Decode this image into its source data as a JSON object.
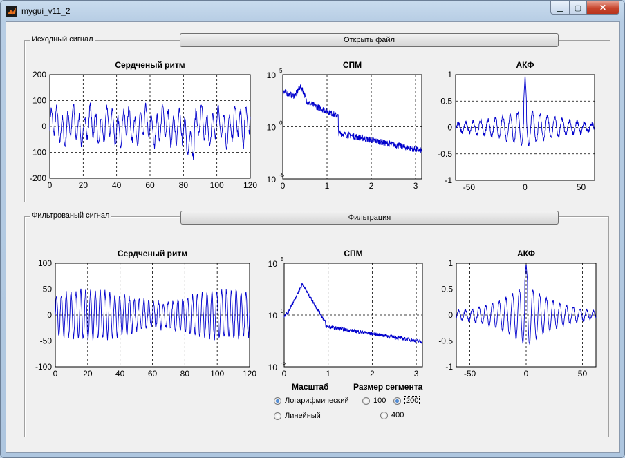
{
  "window": {
    "title": "mygui_v11_2"
  },
  "panels": {
    "source": {
      "title": "Исходный сигнал",
      "button": "Открыть файл"
    },
    "filtered": {
      "title": "Фильтрованый сигнал",
      "button": "Фильтрация"
    }
  },
  "controls": {
    "scale_label": "Масштаб",
    "segment_label": "Размер сегмента",
    "scale_options": [
      {
        "label": "Логарифмический",
        "selected": true
      },
      {
        "label": "Линейный",
        "selected": false
      }
    ],
    "segment_options": [
      {
        "label": "100",
        "selected": false
      },
      {
        "label": "200",
        "selected": true
      },
      {
        "label": "400",
        "selected": false
      }
    ]
  },
  "chart_data": [
    {
      "id": "src-rhythm",
      "type": "line",
      "title": "Сердченый ритм",
      "xlim": [
        0,
        120
      ],
      "ylim": [
        -200,
        200
      ],
      "xticks": [
        0,
        20,
        40,
        60,
        80,
        100,
        120
      ],
      "yticks": [
        -200,
        -100,
        0,
        100,
        200
      ],
      "grid": true,
      "color": "#0000cc"
    },
    {
      "id": "src-psd",
      "type": "line",
      "title": "СПМ",
      "yscale": "log",
      "xlim": [
        0,
        3.14
      ],
      "ylim": [
        -5,
        5
      ],
      "xticks": [
        0,
        1,
        2,
        3
      ],
      "yticks": [
        -5,
        0,
        5
      ],
      "ylabels_base": "10",
      "grid": true,
      "color": "#0000cc"
    },
    {
      "id": "src-acf",
      "type": "line",
      "title": "АКФ",
      "xlim": [
        -62,
        62
      ],
      "ylim": [
        -1,
        1
      ],
      "xticks": [
        -50,
        0,
        50
      ],
      "yticks": [
        -1,
        -0.5,
        0,
        0.5,
        1
      ],
      "grid": true,
      "color": "#0000cc"
    },
    {
      "id": "flt-rhythm",
      "type": "line",
      "title": "Сердченый ритм",
      "xlim": [
        0,
        120
      ],
      "ylim": [
        -100,
        100
      ],
      "xticks": [
        0,
        20,
        40,
        60,
        80,
        100,
        120
      ],
      "yticks": [
        -100,
        -50,
        0,
        50,
        100
      ],
      "grid": true,
      "color": "#0000cc"
    },
    {
      "id": "flt-psd",
      "type": "line",
      "title": "СПМ",
      "yscale": "log",
      "xlim": [
        0,
        3.14
      ],
      "ylim": [
        -5,
        5
      ],
      "xticks": [
        0,
        1,
        2,
        3
      ],
      "yticks": [
        -5,
        0,
        5
      ],
      "ylabels_base": "10",
      "grid": true,
      "color": "#0000cc"
    },
    {
      "id": "flt-acf",
      "type": "line",
      "title": "АКФ",
      "xlim": [
        -62,
        62
      ],
      "ylim": [
        -1,
        1
      ],
      "xticks": [
        -50,
        0,
        50
      ],
      "yticks": [
        -1,
        -0.5,
        0,
        0.5,
        1
      ],
      "grid": true,
      "color": "#0000cc"
    }
  ]
}
